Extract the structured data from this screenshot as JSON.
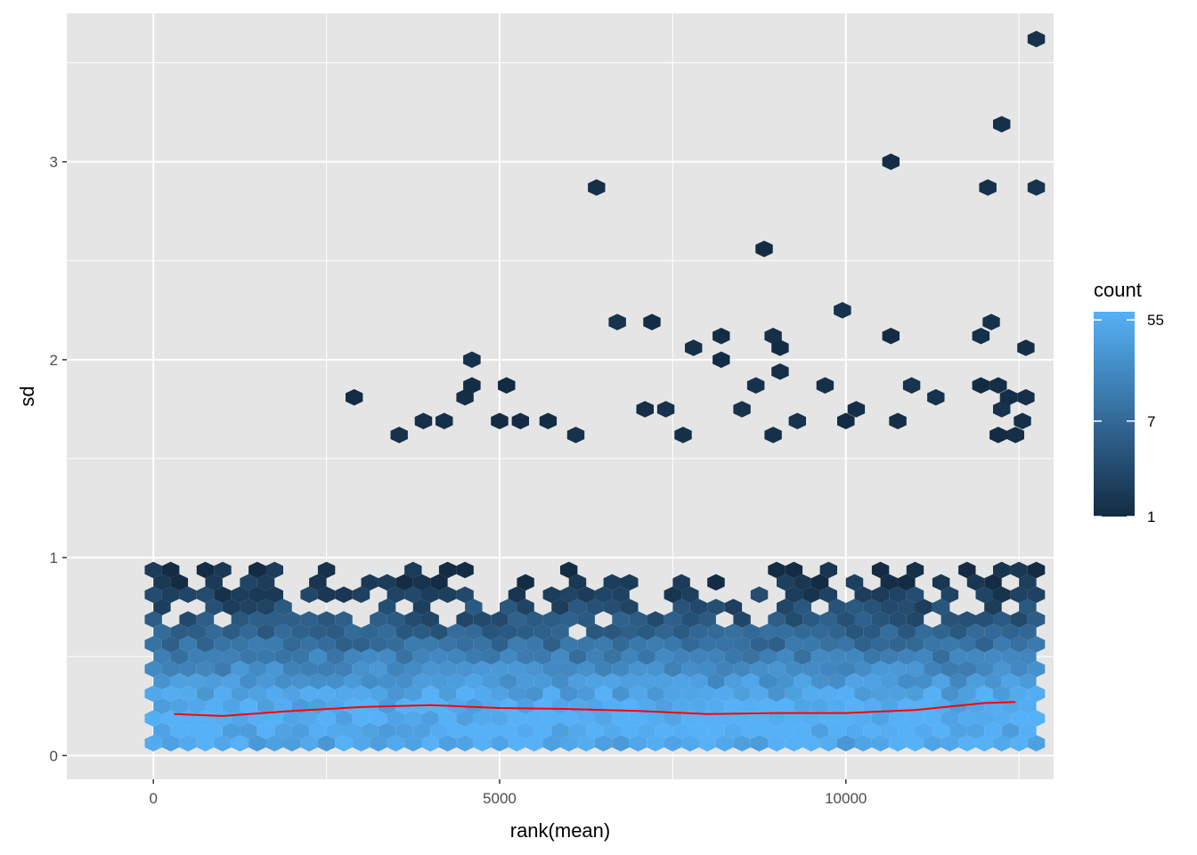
{
  "chart_data": {
    "type": "heatmap",
    "subtype": "hexbin",
    "title": "",
    "xlabel": "rank(mean)",
    "ylabel": "sd",
    "xlim": [
      -1250,
      13000
    ],
    "ylim": [
      -0.12,
      3.75
    ],
    "x_ticks": [
      0,
      5000,
      10000
    ],
    "x_tick_labels": [
      "0",
      "5000",
      "10000"
    ],
    "y_ticks": [
      0,
      1,
      2,
      3
    ],
    "y_tick_labels": [
      "0",
      "1",
      "2",
      "3"
    ],
    "grid": true,
    "legend": {
      "title": "count",
      "position": "right",
      "scale": "log",
      "breaks": [
        1,
        7,
        55
      ],
      "break_labels": [
        "1",
        "7",
        "55"
      ],
      "max_count": 65,
      "low_color": "#132B43",
      "high_color": "#56B1F7"
    },
    "colors": {
      "panel_background": "#E5E5E5",
      "grid": "#FFFFFF",
      "trend_line": "#FF0000"
    },
    "hex_size": {
      "dx": 250,
      "dy": 0.0625
    },
    "hex_bands": [
      {
        "y": 0.0625,
        "count": 50
      },
      {
        "y": 0.125,
        "count": 60
      },
      {
        "y": 0.1875,
        "count": 65
      },
      {
        "y": 0.25,
        "count": 58
      },
      {
        "y": 0.3125,
        "count": 45
      },
      {
        "y": 0.375,
        "count": 32
      },
      {
        "y": 0.4375,
        "count": 22
      },
      {
        "y": 0.5,
        "count": 14
      },
      {
        "y": 0.5625,
        "count": 9
      },
      {
        "y": 0.625,
        "count": 6
      },
      {
        "y": 0.6875,
        "count": 4
      },
      {
        "y": 0.75,
        "count": 3
      },
      {
        "y": 0.8125,
        "count": 2
      },
      {
        "y": 0.875,
        "count": 1.5
      },
      {
        "y": 0.9375,
        "count": 1.2
      }
    ],
    "outliers": [
      {
        "x": 12750,
        "y": 3.62
      },
      {
        "x": 12250,
        "y": 3.19
      },
      {
        "x": 10650,
        "y": 3.0
      },
      {
        "x": 12050,
        "y": 2.87
      },
      {
        "x": 12750,
        "y": 2.87
      },
      {
        "x": 6400,
        "y": 2.87
      },
      {
        "x": 8820,
        "y": 2.56
      },
      {
        "x": 9950,
        "y": 2.25
      },
      {
        "x": 6700,
        "y": 2.19
      },
      {
        "x": 7200,
        "y": 2.19
      },
      {
        "x": 12100,
        "y": 2.19
      },
      {
        "x": 8200,
        "y": 2.12
      },
      {
        "x": 8950,
        "y": 2.12
      },
      {
        "x": 10650,
        "y": 2.12
      },
      {
        "x": 11950,
        "y": 2.12
      },
      {
        "x": 7800,
        "y": 2.06
      },
      {
        "x": 9050,
        "y": 2.06
      },
      {
        "x": 12600,
        "y": 2.06
      },
      {
        "x": 4600,
        "y": 2.0
      },
      {
        "x": 8200,
        "y": 2.0
      },
      {
        "x": 9050,
        "y": 1.94
      },
      {
        "x": 4600,
        "y": 1.87
      },
      {
        "x": 5100,
        "y": 1.87
      },
      {
        "x": 8700,
        "y": 1.87
      },
      {
        "x": 9700,
        "y": 1.87
      },
      {
        "x": 10950,
        "y": 1.87
      },
      {
        "x": 11950,
        "y": 1.87
      },
      {
        "x": 12200,
        "y": 1.87
      },
      {
        "x": 2900,
        "y": 1.81
      },
      {
        "x": 4500,
        "y": 1.81
      },
      {
        "x": 11300,
        "y": 1.81
      },
      {
        "x": 12350,
        "y": 1.81
      },
      {
        "x": 12600,
        "y": 1.81
      },
      {
        "x": 7100,
        "y": 1.75
      },
      {
        "x": 7400,
        "y": 1.75
      },
      {
        "x": 8500,
        "y": 1.75
      },
      {
        "x": 10150,
        "y": 1.75
      },
      {
        "x": 12250,
        "y": 1.75
      },
      {
        "x": 3900,
        "y": 1.69
      },
      {
        "x": 4200,
        "y": 1.69
      },
      {
        "x": 5000,
        "y": 1.69
      },
      {
        "x": 5300,
        "y": 1.69
      },
      {
        "x": 5700,
        "y": 1.69
      },
      {
        "x": 9300,
        "y": 1.69
      },
      {
        "x": 10000,
        "y": 1.69
      },
      {
        "x": 10750,
        "y": 1.69
      },
      {
        "x": 12550,
        "y": 1.69
      },
      {
        "x": 3550,
        "y": 1.62
      },
      {
        "x": 6100,
        "y": 1.62
      },
      {
        "x": 7650,
        "y": 1.62
      },
      {
        "x": 8950,
        "y": 1.62
      },
      {
        "x": 12200,
        "y": 1.62
      },
      {
        "x": 12450,
        "y": 1.62
      }
    ],
    "trend_line": {
      "x": [
        300,
        1000,
        2000,
        3000,
        4000,
        5000,
        6000,
        7000,
        8000,
        9000,
        10000,
        11000,
        12000,
        12450
      ],
      "y": [
        0.21,
        0.2,
        0.225,
        0.245,
        0.255,
        0.24,
        0.235,
        0.225,
        0.21,
        0.215,
        0.215,
        0.23,
        0.265,
        0.27
      ]
    }
  }
}
